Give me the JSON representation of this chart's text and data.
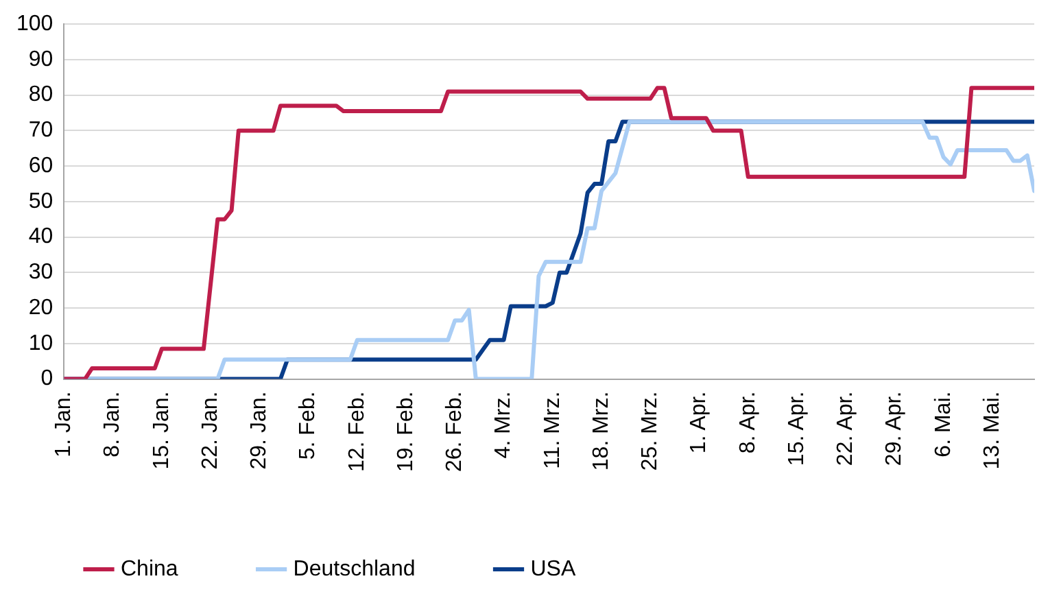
{
  "chart_data": {
    "type": "line",
    "xlim": [
      "--01-01",
      "--05-19"
    ],
    "xticks": [
      {
        "value": "--01-01",
        "label": "1. Jan."
      },
      {
        "value": "--01-08",
        "label": "8. Jan."
      },
      {
        "value": "--01-15",
        "label": "15. Jan."
      },
      {
        "value": "--01-22",
        "label": "22. Jan."
      },
      {
        "value": "--01-29",
        "label": "29. Jan."
      },
      {
        "value": "--02-05",
        "label": "5. Feb."
      },
      {
        "value": "--02-12",
        "label": "12. Feb."
      },
      {
        "value": "--02-19",
        "label": "19. Feb."
      },
      {
        "value": "--02-26",
        "label": "26. Feb."
      },
      {
        "value": "--03-04",
        "label": "4. Mrz."
      },
      {
        "value": "--03-11",
        "label": "11. Mrz."
      },
      {
        "value": "--03-18",
        "label": "18. Mrz."
      },
      {
        "value": "--03-25",
        "label": "25. Mrz."
      },
      {
        "value": "--04-01",
        "label": "1. Apr."
      },
      {
        "value": "--04-08",
        "label": "8. Apr."
      },
      {
        "value": "--04-15",
        "label": "15. Apr."
      },
      {
        "value": "--04-22",
        "label": "22. Apr."
      },
      {
        "value": "--04-29",
        "label": "29. Apr."
      },
      {
        "value": "--05-06",
        "label": "6. Mai."
      },
      {
        "value": "--05-13",
        "label": "13. Mai."
      }
    ],
    "ylim": [
      0,
      100
    ],
    "yticks": [
      0,
      10,
      20,
      30,
      40,
      50,
      60,
      70,
      80,
      90,
      100
    ],
    "grid": "y",
    "legend": "bottom",
    "marker": "none",
    "line_style": "solid",
    "series": [
      {
        "name": "China",
        "color": "#be1e4b",
        "x": [
          "--01-01",
          "--01-04",
          "--01-05",
          "--01-14",
          "--01-15",
          "--01-21",
          "--01-23",
          "--01-24",
          "--01-25",
          "--01-26",
          "--01-31",
          "--02-01",
          "--02-09",
          "--02-10",
          "--02-24",
          "--02-25",
          "--03-15",
          "--03-16",
          "--03-25",
          "--03-26",
          "--03-27",
          "--03-28",
          "--04-02",
          "--04-03",
          "--04-07",
          "--04-08",
          "--05-09",
          "--05-10",
          "--05-19"
        ],
        "values": [
          0,
          0,
          3,
          3,
          8.5,
          8.5,
          45,
          45,
          47.5,
          70,
          70,
          77,
          77,
          75.5,
          75.5,
          81,
          81,
          79,
          79,
          82,
          82,
          73.5,
          73.5,
          70,
          70,
          57,
          57,
          82,
          82
        ]
      },
      {
        "name": "Deutschland",
        "color": "#a9cdf5",
        "x": [
          "--01-01",
          "--01-23",
          "--01-24",
          "--02-11",
          "--02-12",
          "--02-25",
          "--02-26",
          "--02-27",
          "--02-28",
          "--02-29",
          "--03-08",
          "--03-09",
          "--03-10",
          "--03-15",
          "--03-16",
          "--03-17",
          "--03-18",
          "--03-20",
          "--03-22",
          "--05-03",
          "--05-04",
          "--05-05",
          "--05-06",
          "--05-07",
          "--05-08",
          "--05-15",
          "--05-16",
          "--05-17",
          "--05-18",
          "--05-19"
        ],
        "values": [
          0,
          0,
          5.5,
          5.5,
          11,
          11,
          16.5,
          16.5,
          19.5,
          0,
          0,
          29,
          33,
          33,
          42.5,
          42.5,
          53,
          58,
          72.5,
          72.5,
          68,
          68,
          62.5,
          60.5,
          64.5,
          64.5,
          61.5,
          61.5,
          63,
          53
        ]
      },
      {
        "name": "USA",
        "color": "#0a3d8a",
        "x": [
          "--01-01",
          "--02-01",
          "--02-02",
          "--02-29",
          "--03-02",
          "--03-04",
          "--03-05",
          "--03-10",
          "--03-11",
          "--03-12",
          "--03-13",
          "--03-15",
          "--03-16",
          "--03-17",
          "--03-18",
          "--03-19",
          "--03-20",
          "--03-21",
          "--05-19"
        ],
        "values": [
          0,
          0,
          5.5,
          5.5,
          11,
          11,
          20.5,
          20.5,
          21.5,
          30,
          30,
          41,
          52.5,
          55,
          55,
          67,
          67,
          72.5,
          72.5
        ]
      }
    ]
  }
}
